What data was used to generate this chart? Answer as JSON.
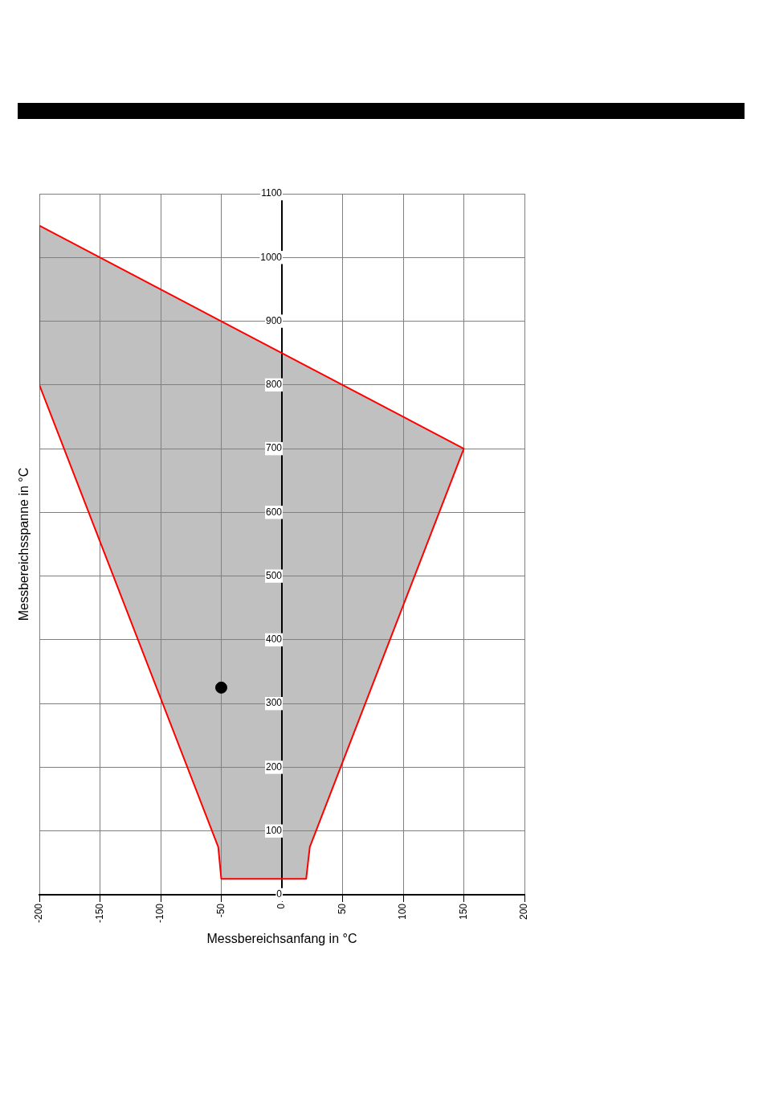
{
  "chart_data": {
    "type": "area",
    "xlabel": "Messbereichsanfang in °C",
    "ylabel": "Messbereichsspanne in °C",
    "xlim": [
      -200,
      200
    ],
    "xticks": [
      -200,
      -150,
      -100,
      -50,
      0,
      50,
      100,
      150,
      200
    ],
    "ylim": [
      0,
      1100
    ],
    "yticks": [
      0,
      100,
      200,
      300,
      400,
      500,
      600,
      700,
      800,
      900,
      1000,
      1100
    ],
    "grid": true,
    "legend": false,
    "series": [
      {
        "color": "#ff0000",
        "x": [
          -200,
          -200,
          -52.5,
          -50,
          20,
          23,
          150,
          -200
        ],
        "values": [
          1050,
          800,
          75,
          25,
          25,
          75,
          700,
          1050
        ]
      },
      {
        "type": "scatter",
        "color": "#000000",
        "marker": "circle",
        "x": [
          -50
        ],
        "values": [
          325
        ]
      }
    ]
  }
}
